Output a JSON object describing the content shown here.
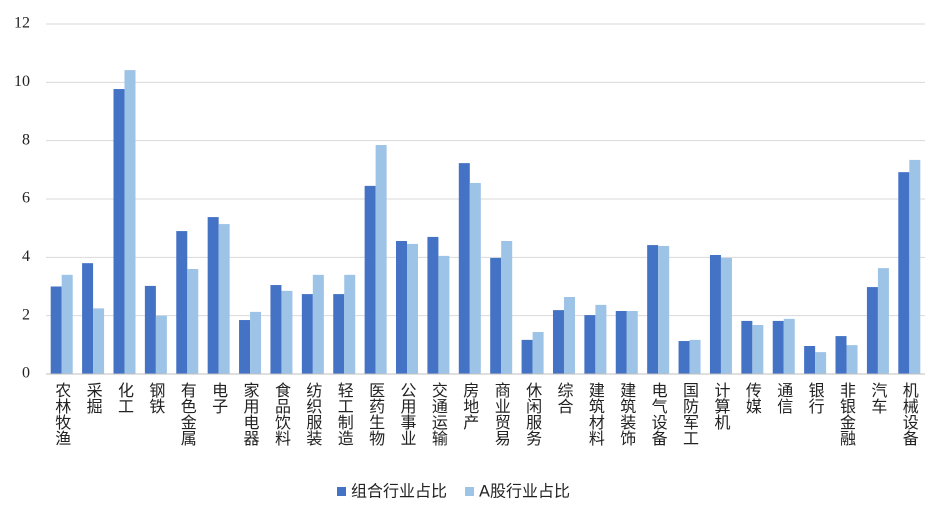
{
  "chart_data": {
    "type": "bar",
    "categories": [
      "农林牧渔",
      "采掘",
      "化工",
      "钢铁",
      "有色金属",
      "电子",
      "家用电器",
      "食品饮料",
      "纺织服装",
      "轻工制造",
      "医药生物",
      "公用事业",
      "交通运输",
      "房地产",
      "商业贸易",
      "休闲服务",
      "综合",
      "建筑材料",
      "建筑装饰",
      "电气设备",
      "国防军工",
      "计算机",
      "传媒",
      "通信",
      "银行",
      "非银金融",
      "汽车",
      "机械设备"
    ],
    "series": [
      {
        "name": "组合行业占比",
        "color": "#4472c4",
        "values": [
          3.0,
          3.8,
          9.77,
          3.02,
          4.9,
          5.38,
          1.85,
          3.05,
          2.74,
          2.74,
          6.45,
          4.56,
          4.7,
          7.23,
          3.98,
          1.17,
          2.19,
          2.02,
          2.16,
          4.42,
          1.13,
          4.08,
          1.82,
          1.82,
          0.96,
          1.3,
          2.98,
          6.92
        ]
      },
      {
        "name": "A股行业占比",
        "color": "#9dc3e6",
        "values": [
          3.4,
          2.25,
          10.42,
          2.0,
          3.6,
          5.14,
          2.13,
          2.85,
          3.4,
          3.4,
          7.85,
          4.46,
          4.05,
          6.55,
          4.56,
          1.44,
          2.64,
          2.37,
          2.16,
          4.39,
          1.17,
          3.98,
          1.68,
          1.89,
          0.75,
          0.99,
          3.63,
          7.34
        ]
      }
    ],
    "ylim": [
      0,
      12
    ],
    "yticks": [
      0,
      2,
      4,
      6,
      8,
      10,
      12
    ],
    "grid": true,
    "legend": "bottom"
  }
}
